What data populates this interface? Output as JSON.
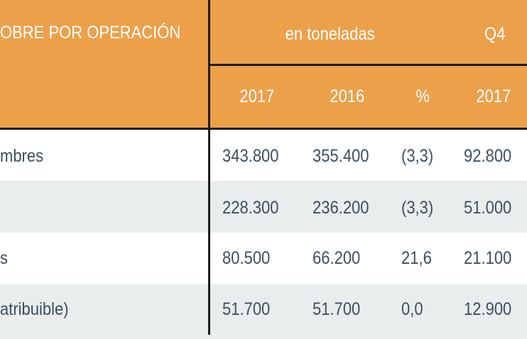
{
  "header": {
    "title": "OBRE POR OPERACIÓN",
    "group_label": "en toneladas",
    "quarter_label": "Q4",
    "columns": [
      "2017",
      "2016",
      "%",
      "2017"
    ]
  },
  "rows": [
    {
      "label": "mbres",
      "values": [
        "343.800",
        "355.400",
        "(3,3)",
        "92.800"
      ]
    },
    {
      "label": "",
      "values": [
        "228.300",
        "236.200",
        "(3,3)",
        "51.000"
      ]
    },
    {
      "label": "s",
      "values": [
        "80.500",
        "66.200",
        "21,6",
        "21.100"
      ]
    },
    {
      "label": "atribuible)",
      "values": [
        "51.700",
        "51.700",
        "0,0",
        "12.900"
      ]
    }
  ],
  "colors": {
    "header_bg": "#eda04a",
    "header_text": "#ffffff",
    "row_alt_bg": "#e9edee",
    "body_text": "#3d4f5e",
    "rule": "#1c1c1c"
  }
}
